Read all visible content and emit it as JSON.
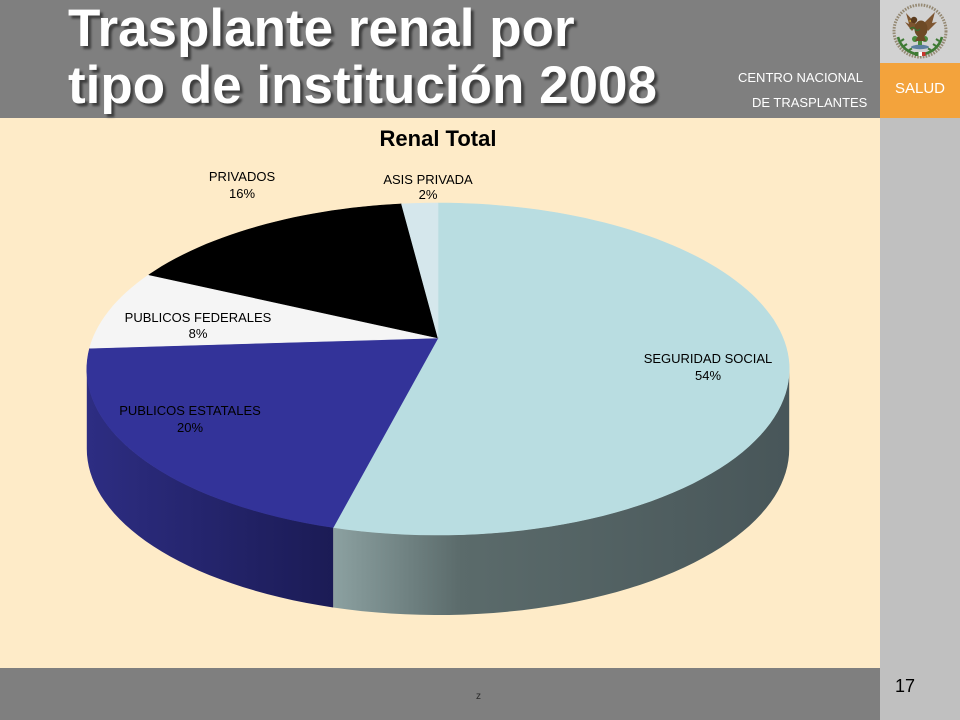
{
  "slide": {
    "title_line_1": "Trasplante renal por",
    "title_line_2": "tipo de institución 2008",
    "org_line_1": "CENTRO NACIONAL",
    "org_line_2": "DE TRASPLANTES",
    "brand_label": "SALUD",
    "emblem_icon": "coat-of-arms-icon",
    "footer_text": "z",
    "page_number": "17"
  },
  "colors": {
    "header_bg": "#7f7f7f",
    "footer_bg": "#7f7f7f",
    "content_bg": "#feebc8",
    "side_column_bg": "#c0c0c0",
    "emblem_bg": "#d2d2d2",
    "brand_bg": "#f3a33c",
    "title_text": "#ffffff"
  },
  "chart_data": {
    "type": "pie",
    "three_d": true,
    "title": "Renal Total",
    "categories": [
      "SEGURIDAD SOCIAL",
      "PUBLICOS ESTATALES",
      "PUBLICOS FEDERALES",
      "PRIVADOS",
      "ASIS PRIVADA"
    ],
    "values": [
      54,
      20,
      8,
      16,
      2
    ],
    "data_labels": [
      "54%",
      "20%",
      "8%",
      "16%",
      "2%"
    ],
    "colors": [
      "#b9dde1",
      "#333399",
      "#f5f5f5",
      "#000000",
      "#d5e7ec"
    ],
    "legend": "none"
  }
}
